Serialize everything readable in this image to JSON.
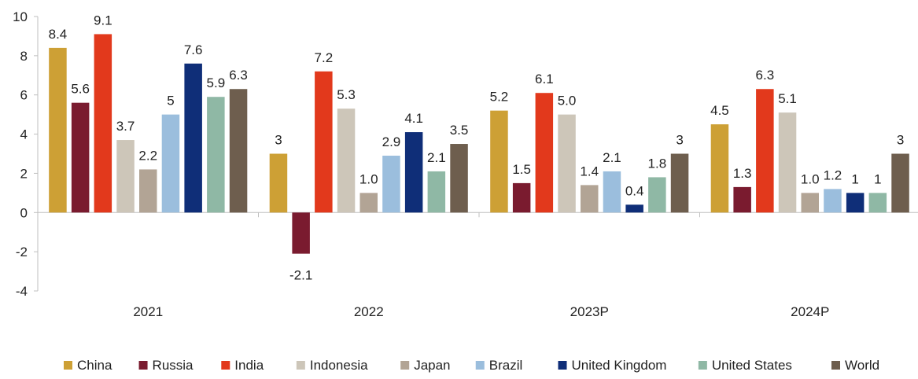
{
  "chart_data": {
    "type": "bar",
    "categories": [
      "2021",
      "2022",
      "2023P",
      "2024P"
    ],
    "ylim": [
      -4,
      10
    ],
    "yticks": [
      -4,
      -2,
      0,
      2,
      4,
      6,
      8,
      10
    ],
    "ytick_labels": [
      "-4",
      "-2",
      "0",
      "2",
      "4",
      "6",
      "8",
      "10"
    ],
    "grid": false,
    "legend_position": "bottom",
    "series": [
      {
        "name": "China",
        "color": "#CDA035",
        "values": [
          8.4,
          3,
          5.2,
          4.5
        ],
        "labels": [
          "8.4",
          "3",
          "5.2",
          "4.5"
        ]
      },
      {
        "name": "Russia",
        "color": "#7A1B2F",
        "values": [
          5.6,
          -2.1,
          1.5,
          1.3
        ],
        "labels": [
          "5.6",
          "-2.1",
          "1.5",
          "1.3"
        ]
      },
      {
        "name": "India",
        "color": "#E2391C",
        "values": [
          9.1,
          7.2,
          6.1,
          6.3
        ],
        "labels": [
          "9.1",
          "7.2",
          "6.1",
          "6.3"
        ]
      },
      {
        "name": "Indonesia",
        "color": "#CDC6B9",
        "values": [
          3.7,
          5.3,
          5.0,
          5.1
        ],
        "labels": [
          "3.7",
          "5.3",
          "5.0",
          "5.1"
        ]
      },
      {
        "name": "Japan",
        "color": "#B2A495",
        "values": [
          2.2,
          1.0,
          1.4,
          1.0
        ],
        "labels": [
          "2.2",
          "1.0",
          "1.4",
          "1.0"
        ]
      },
      {
        "name": "Brazil",
        "color": "#9BBEDD",
        "values": [
          5,
          2.9,
          2.1,
          1.2
        ],
        "labels": [
          "5",
          "2.9",
          "2.1",
          "1.2"
        ]
      },
      {
        "name": "United Kingdom",
        "color": "#0F2E78",
        "values": [
          7.6,
          4.1,
          0.4,
          1
        ],
        "labels": [
          "7.6",
          "4.1",
          "0.4",
          "1"
        ]
      },
      {
        "name": "United States",
        "color": "#8FB8A5",
        "values": [
          5.9,
          2.1,
          1.8,
          1
        ],
        "labels": [
          "5.9",
          "2.1",
          "1.8",
          "1"
        ]
      },
      {
        "name": "World",
        "color": "#6E5E4E",
        "values": [
          6.3,
          3.5,
          3,
          3
        ],
        "labels": [
          "6.3",
          "3.5",
          "3",
          "3"
        ]
      }
    ]
  }
}
